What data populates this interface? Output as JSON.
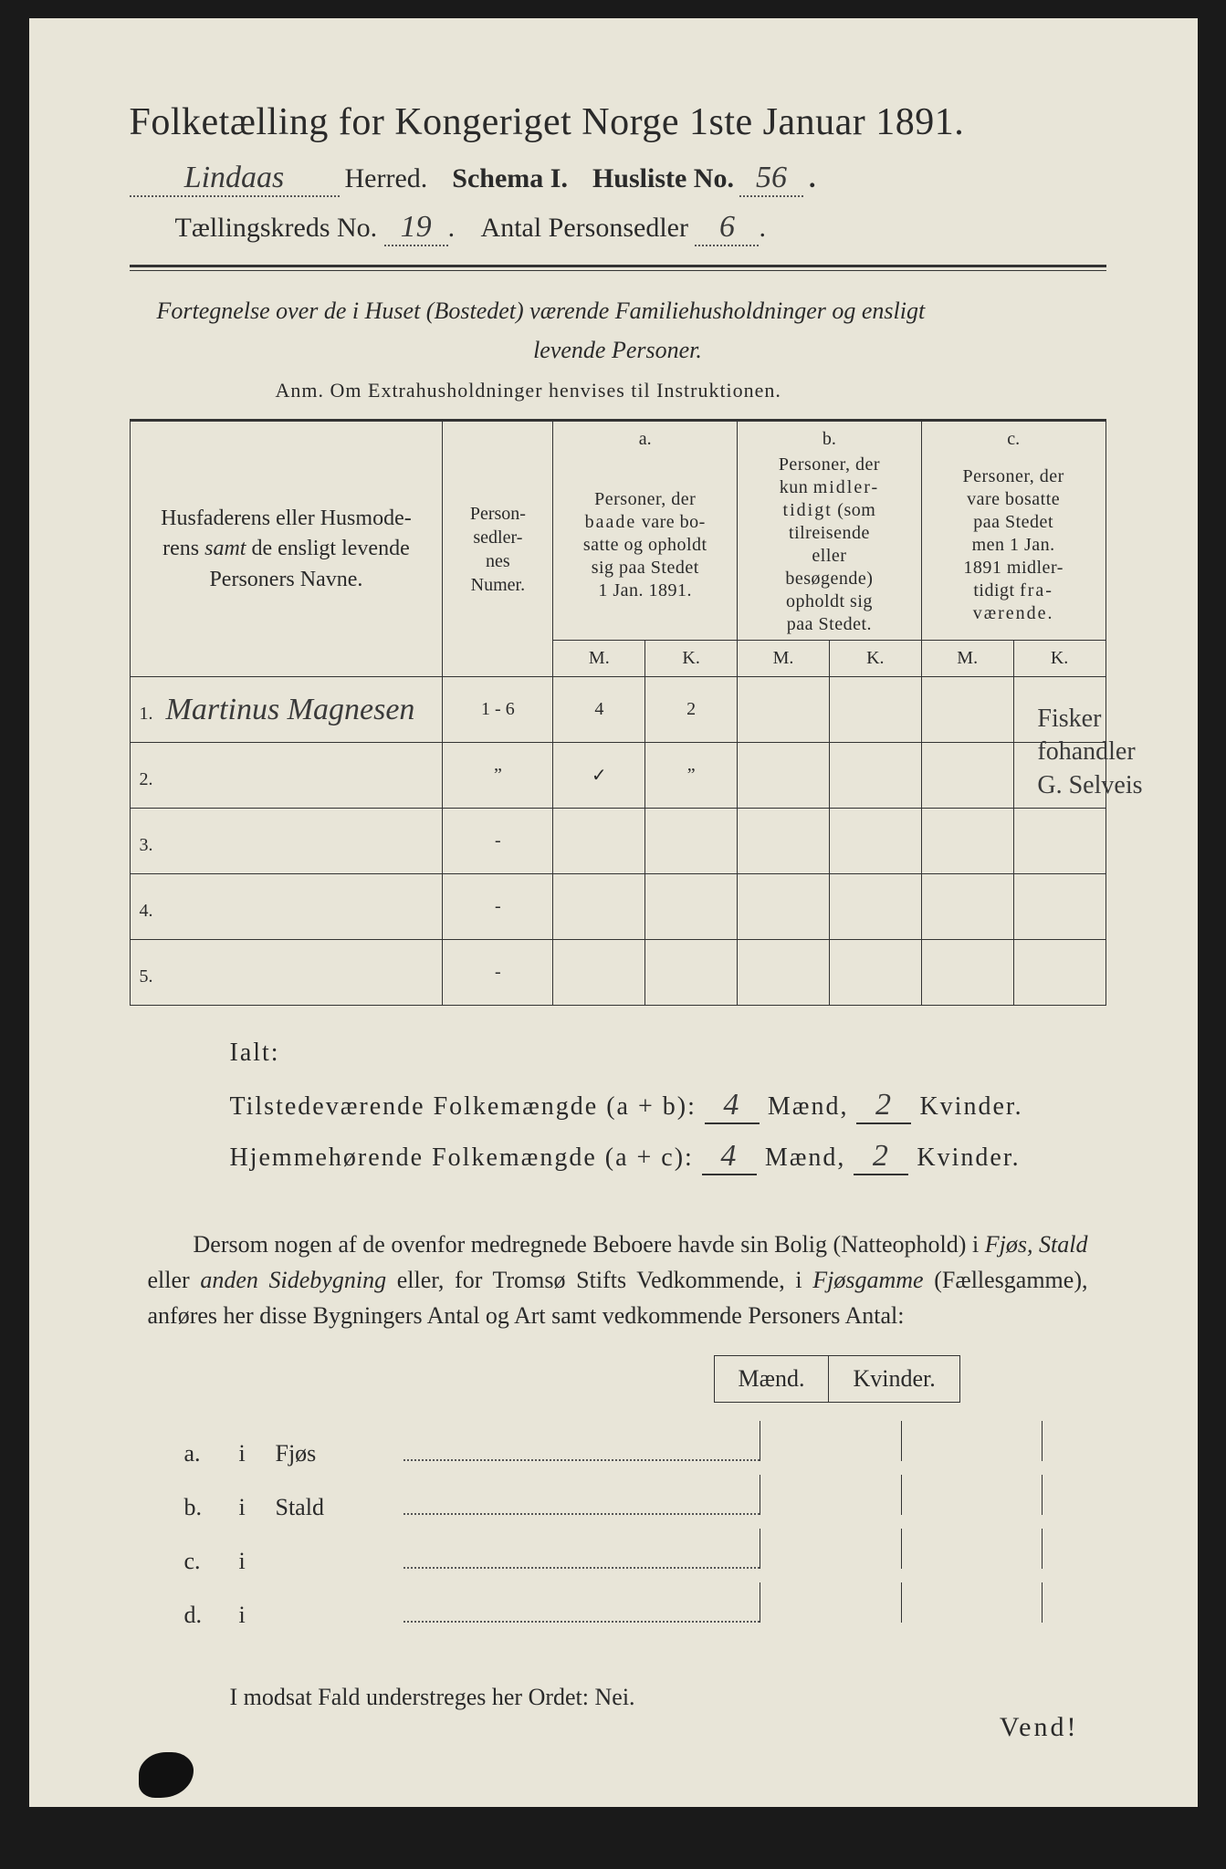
{
  "title": "Folketælling for Kongeriget Norge 1ste Januar 1891.",
  "fields": {
    "herred_value": "Lindaas",
    "herred_label": "Herred.",
    "schema_label": "Schema I.",
    "husliste_label": "Husliste No.",
    "husliste_value": "56",
    "kreds_label": "Tællingskreds No.",
    "kreds_value": "19",
    "antal_label": "Antal Personsedler",
    "antal_value": "6"
  },
  "intro": {
    "line1": "Fortegnelse over de i Huset (Bostedet) værende Familiehusholdninger og ensligt",
    "line2": "levende Personer.",
    "anm": "Anm.  Om Extrahusholdninger henvises til Instruktionen."
  },
  "table": {
    "col_name": "Husfaderens eller Husmoderens samt de ensligt levende Personers Navne.",
    "col_num": "Personsedlernes Numer.",
    "col_a_top": "a.",
    "col_a": "Personer, der baade vare bosatte og opholdt sig paa Stedet 1 Jan. 1891.",
    "col_b_top": "b.",
    "col_b": "Personer, der kun midlertidigt (som tilreisende eller besøgende) opholdt sig paa Stedet.",
    "col_c_top": "c.",
    "col_c": "Personer, der vare bosatte paa Stedet men 1 Jan. 1891 midlertidigt fraværende.",
    "mk_m": "M.",
    "mk_k": "K.",
    "rows": [
      {
        "n": "1.",
        "name": "Martinus Magnesen",
        "num": "1 - 6",
        "am": "4",
        "ak": "2",
        "bm": "",
        "bk": "",
        "cm": "",
        "ck": ""
      },
      {
        "n": "2.",
        "name": "",
        "num": "”",
        "am": "✓",
        "ak": "”",
        "bm": "",
        "bk": "",
        "cm": "",
        "ck": ""
      },
      {
        "n": "3.",
        "name": "",
        "num": "-",
        "am": "",
        "ak": "",
        "bm": "",
        "bk": "",
        "cm": "",
        "ck": ""
      },
      {
        "n": "4.",
        "name": "",
        "num": "-",
        "am": "",
        "ak": "",
        "bm": "",
        "bk": "",
        "cm": "",
        "ck": ""
      },
      {
        "n": "5.",
        "name": "",
        "num": "-",
        "am": "",
        "ak": "",
        "bm": "",
        "bk": "",
        "cm": "",
        "ck": ""
      }
    ],
    "margin_notes": [
      "Fisker",
      "fohandler",
      "G. Selveis"
    ]
  },
  "totals": {
    "ialt": "Ialt:",
    "line1_label": "Tilstedeværende Folkemængde (a + b):",
    "line1_m": "4",
    "line1_k": "2",
    "line2_label": "Hjemmehørende Folkemængde (a + c):",
    "line2_m": "4",
    "line2_k": "2",
    "maend": "Mænd,",
    "kvinder": "Kvinder."
  },
  "paragraph": "Dersom nogen af de ovenfor medregnede Beboere havde sin Bolig (Natteophold) i Fjøs, Stald eller anden Sidebygning eller, for Tromsø Stifts Vedkommende, i Fjøsgamme (Fællesgamme), anføres her disse Bygningers Antal og Art samt vedkommende Personers Antal:",
  "mk_header": {
    "m": "Mænd.",
    "k": "Kvinder."
  },
  "sublist": [
    {
      "lbl": "a.",
      "i": "i",
      "name": "Fjøs"
    },
    {
      "lbl": "b.",
      "i": "i",
      "name": "Stald"
    },
    {
      "lbl": "c.",
      "i": "i",
      "name": ""
    },
    {
      "lbl": "d.",
      "i": "i",
      "name": ""
    }
  ],
  "footer": "I modsat Fald understreges her Ordet: Nei.",
  "vend": "Vend!"
}
